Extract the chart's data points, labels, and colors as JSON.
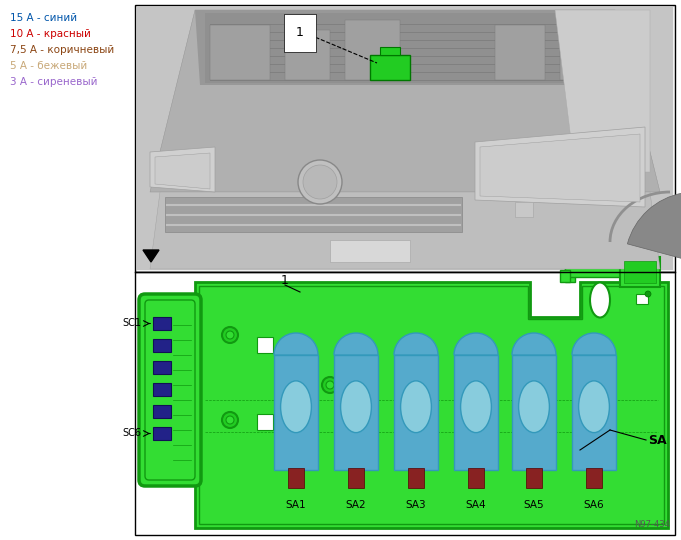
{
  "legend_items": [
    {
      "label": "15 А - синий",
      "color": "#0055AA"
    },
    {
      "label": "10 А - красный",
      "color": "#CC0000"
    },
    {
      "label": "7,5 А - коричневый",
      "color": "#8B4513"
    },
    {
      "label": "5 А - бежевый",
      "color": "#C8A878"
    },
    {
      "label": "3 А - сиреневый",
      "color": "#9966CC"
    }
  ],
  "bg_color": "#FFFFFF",
  "border_color": "#000000",
  "green_main": "#33DD33",
  "green_mid": "#22CC22",
  "green_dark": "#119911",
  "green_border": "#007700",
  "green_inner": "#55EE55",
  "blue_fuse": "#55AACC",
  "blue_fuse_light": "#88CCDD",
  "dark_blue_relay": "#222288",
  "dark_red_connector": "#882222",
  "figure_width": 6.81,
  "figure_height": 5.4,
  "dpi": 100,
  "sa_labels": [
    "SA1",
    "SA2",
    "SA3",
    "SA4",
    "SA5",
    "SA6"
  ],
  "sc1_label": "SC1",
  "sc6_label": "SC6",
  "sa_label": "SA",
  "label_1_top": "1",
  "label_1_bottom": "1",
  "arrow_color": "#000000",
  "text_color_black": "#000000",
  "watermark": "N97-434",
  "car_bg": "#C8C8C8",
  "car_body": "#BBBBBB",
  "car_dark": "#888888",
  "car_light": "#DDDDDD",
  "car_darker": "#999999"
}
